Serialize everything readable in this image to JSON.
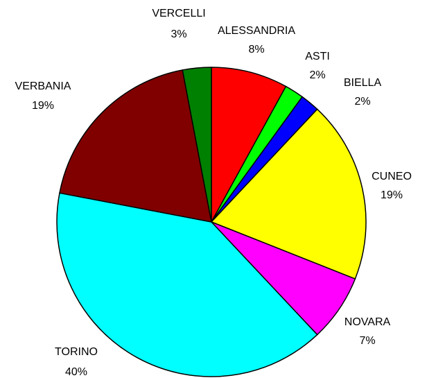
{
  "chart_data": {
    "type": "pie",
    "categories": [
      "ALESSANDRIA",
      "ASTI",
      "BIELLA",
      "CUNEO",
      "NOVARA",
      "TORINO",
      "VERBANIA",
      "VERCELLI"
    ],
    "values": [
      8,
      2,
      2,
      19,
      7,
      40,
      19,
      3
    ],
    "value_labels": [
      "8%",
      "2%",
      "2%",
      "19%",
      "7%",
      "40%",
      "19%",
      "3%"
    ],
    "colors": [
      "#ff0000",
      "#00ff00",
      "#0000ff",
      "#ffff00",
      "#ff00ff",
      "#00ffff",
      "#800000",
      "#008000"
    ]
  }
}
